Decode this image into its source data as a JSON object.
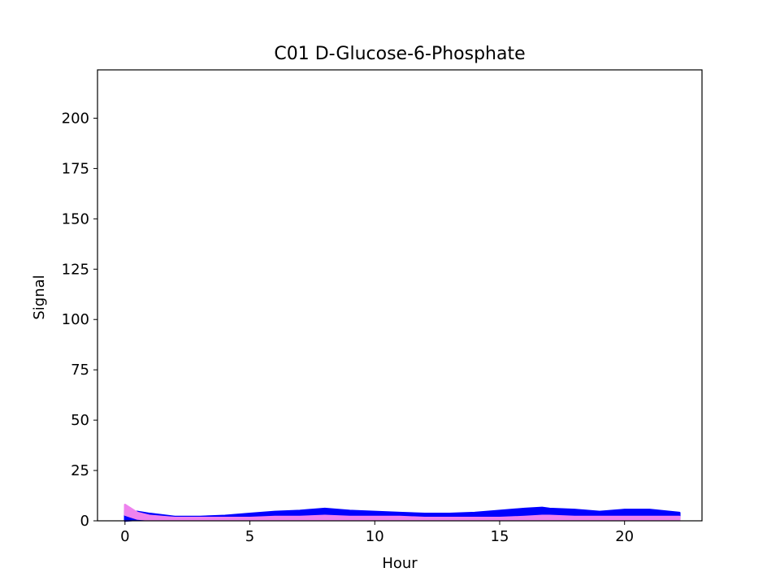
{
  "chart_data": {
    "type": "area",
    "title": "C01 D-Glucose-6-Phosphate",
    "xlabel": "Hour",
    "ylabel": "Signal",
    "xlim": [
      -1.1,
      23.1
    ],
    "ylim": [
      0,
      224
    ],
    "xticks": [
      0,
      5,
      10,
      15,
      20
    ],
    "yticks": [
      0,
      25,
      50,
      75,
      100,
      125,
      150,
      175,
      200
    ],
    "grid": false,
    "legend": "none",
    "series": [
      {
        "color": "#0000ff",
        "x": [
          0,
          0.5,
          1,
          2,
          3,
          4,
          5,
          6,
          7,
          8,
          9,
          10,
          11,
          12,
          13,
          14,
          15,
          16,
          16.7,
          17,
          18,
          19,
          20,
          21,
          22.2
        ],
        "lower": [
          0,
          0.5,
          0.5,
          0.5,
          0.5,
          0.5,
          0.5,
          1,
          1,
          1,
          1,
          1,
          1,
          1,
          1,
          1,
          1,
          1,
          1,
          1,
          1,
          1,
          1,
          1,
          1
        ],
        "upper": [
          5,
          4.5,
          3.5,
          2,
          2,
          2.5,
          3.5,
          4.5,
          5,
          6,
          5,
          4.5,
          4,
          3.5,
          3.5,
          4,
          5,
          6,
          6.5,
          6,
          5.5,
          4.5,
          5.5,
          5.5,
          4
        ]
      },
      {
        "color": "#ee82ee",
        "x": [
          0,
          0.5,
          1,
          2,
          3,
          4,
          5,
          6,
          7,
          8,
          9,
          10,
          11,
          12,
          13,
          14,
          15,
          16,
          16.7,
          17,
          18,
          19,
          20,
          21,
          22.2
        ],
        "lower": [
          3,
          1,
          0.5,
          0.5,
          0.5,
          0.5,
          0.5,
          0.5,
          0.5,
          0.5,
          0.5,
          0.5,
          0.5,
          0.5,
          0.5,
          0.5,
          0.5,
          0.5,
          0.5,
          0.5,
          0.5,
          0.5,
          0.5,
          0.5,
          0.5
        ],
        "upper": [
          8,
          4,
          2.5,
          1.5,
          1.5,
          1.5,
          1.5,
          2,
          2,
          2.5,
          2,
          2,
          2,
          1.5,
          1.5,
          1.5,
          1.5,
          2,
          2.5,
          2.5,
          2,
          2,
          2,
          2,
          2
        ]
      }
    ]
  }
}
